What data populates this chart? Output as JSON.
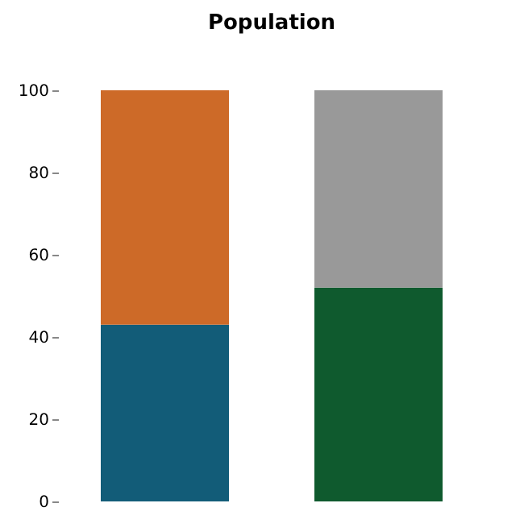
{
  "chart_data": {
    "type": "bar",
    "title": "Population",
    "categories": [
      null,
      null
    ],
    "stacked": true,
    "series": [
      {
        "colors": [
          "#125c78",
          "#0f5a2e"
        ],
        "values": [
          43,
          52
        ]
      },
      {
        "colors": [
          "#cd6a28",
          "#999999"
        ],
        "values": [
          57,
          48
        ]
      }
    ],
    "ylim": [
      0,
      100
    ],
    "yticks": [
      0,
      20,
      40,
      60,
      80,
      100
    ],
    "grid": false,
    "tick_labels": "y"
  }
}
